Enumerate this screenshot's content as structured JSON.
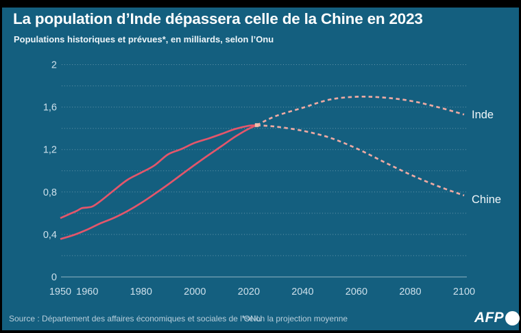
{
  "header": {
    "title": "La population d’Inde dépassera celle de la Chine en 2023",
    "subtitle": "Populations historiques et prévues*, en milliards, selon l’Onu"
  },
  "footer": {
    "source": "Source : Département des affaires économiques et sociales de l’ONU",
    "note": "*selon la projection moyenne",
    "logo": "AFP"
  },
  "colors": {
    "background": "#145f7f",
    "frame": "#000000",
    "historical_line": "#e4566b",
    "projection_line": "#edaaa3",
    "junction_marker": "#f3bcab",
    "grid": "rgba(255,255,255,0.35)",
    "baseline": "rgba(255,255,255,0.55)",
    "tick_text": "#cde0eb"
  },
  "chart_data": {
    "type": "line",
    "title": "La population d’Inde dépassera celle de la Chine en 2023",
    "subtitle": "Populations historiques et prévues*, en milliards, selon l’Onu",
    "unit": "milliards d’habitants",
    "x_range": [
      1950,
      2100
    ],
    "y_range": [
      0,
      2
    ],
    "grid_step": 0.2,
    "grid": true,
    "legend_position": "end-of-line",
    "xticks": [
      "1950",
      "1960",
      "1980",
      "2000",
      "2020",
      "2040",
      "2060",
      "2080",
      "2100"
    ],
    "xtick_values": [
      1950,
      1960,
      1980,
      2000,
      2020,
      2040,
      2060,
      2080,
      2100
    ],
    "yticks": [
      {
        "value": 0,
        "label": "0"
      },
      {
        "value": 0.4,
        "label": "0,4"
      },
      {
        "value": 0.8,
        "label": "0,8"
      },
      {
        "value": 1.2,
        "label": "1,2"
      },
      {
        "value": 1.6,
        "label": "1,6"
      },
      {
        "value": 2,
        "label": "2"
      }
    ],
    "junction": {
      "year": 2023,
      "value": 1.43
    },
    "series": [
      {
        "name": "Chine (historique)",
        "style": "solid",
        "points": [
          [
            1950,
            0.554
          ],
          [
            1953,
            0.588
          ],
          [
            1956,
            0.621
          ],
          [
            1958,
            0.648
          ],
          [
            1960,
            0.654
          ],
          [
            1962,
            0.665
          ],
          [
            1965,
            0.716
          ],
          [
            1970,
            0.818
          ],
          [
            1975,
            0.916
          ],
          [
            1980,
            0.982
          ],
          [
            1985,
            1.051
          ],
          [
            1990,
            1.154
          ],
          [
            1995,
            1.205
          ],
          [
            2000,
            1.264
          ],
          [
            2005,
            1.304
          ],
          [
            2010,
            1.348
          ],
          [
            2015,
            1.394
          ],
          [
            2020,
            1.424
          ],
          [
            2023,
            1.428
          ]
        ]
      },
      {
        "name": "Inde (historique)",
        "style": "solid",
        "points": [
          [
            1950,
            0.357
          ],
          [
            1955,
            0.395
          ],
          [
            1960,
            0.446
          ],
          [
            1965,
            0.506
          ],
          [
            1970,
            0.557
          ],
          [
            1975,
            0.621
          ],
          [
            1980,
            0.696
          ],
          [
            1985,
            0.781
          ],
          [
            1990,
            0.87
          ],
          [
            1995,
            0.964
          ],
          [
            2000,
            1.057
          ],
          [
            2005,
            1.147
          ],
          [
            2010,
            1.234
          ],
          [
            2015,
            1.322
          ],
          [
            2020,
            1.396
          ],
          [
            2023,
            1.429
          ]
        ]
      },
      {
        "name": "Inde (projection)",
        "style": "dashed",
        "points": [
          [
            2023,
            1.429
          ],
          [
            2030,
            1.515
          ],
          [
            2040,
            1.593
          ],
          [
            2050,
            1.67
          ],
          [
            2060,
            1.697
          ],
          [
            2070,
            1.69
          ],
          [
            2080,
            1.659
          ],
          [
            2090,
            1.601
          ],
          [
            2100,
            1.53
          ]
        ]
      },
      {
        "name": "Chine (projection)",
        "style": "dashed",
        "points": [
          [
            2023,
            1.428
          ],
          [
            2030,
            1.416
          ],
          [
            2040,
            1.377
          ],
          [
            2050,
            1.313
          ],
          [
            2060,
            1.211
          ],
          [
            2070,
            1.086
          ],
          [
            2080,
            0.964
          ],
          [
            2090,
            0.858
          ],
          [
            2100,
            0.767
          ]
        ]
      }
    ],
    "end_labels": [
      {
        "text": "Inde",
        "series": "Inde"
      },
      {
        "text": "Chine",
        "series": "Chine"
      }
    ]
  }
}
